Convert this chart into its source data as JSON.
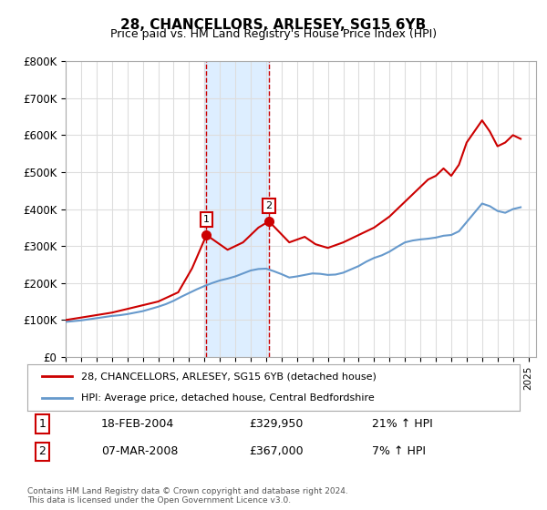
{
  "title": "28, CHANCELLORS, ARLESEY, SG15 6YB",
  "subtitle": "Price paid vs. HM Land Registry's House Price Index (HPI)",
  "ylabel_ticks": [
    "£0",
    "£100K",
    "£200K",
    "£300K",
    "£400K",
    "£500K",
    "£600K",
    "£700K",
    "£800K"
  ],
  "ytick_values": [
    0,
    100000,
    200000,
    300000,
    400000,
    500000,
    600000,
    700000,
    800000
  ],
  "ylim": [
    0,
    800000
  ],
  "xlim_start": 1995.0,
  "xlim_end": 2025.5,
  "marker1_x": 2004.13,
  "marker1_y": 329950,
  "marker2_x": 2008.18,
  "marker2_y": 367000,
  "shade1_x1": 2004.0,
  "shade1_x2": 2008.18,
  "legend_line1": "28, CHANCELLORS, ARLESEY, SG15 6YB (detached house)",
  "legend_line2": "HPI: Average price, detached house, Central Bedfordshire",
  "table_row1_num": "1",
  "table_row1_date": "18-FEB-2004",
  "table_row1_price": "£329,950",
  "table_row1_hpi": "21% ↑ HPI",
  "table_row2_num": "2",
  "table_row2_date": "07-MAR-2008",
  "table_row2_price": "£367,000",
  "table_row2_hpi": "7% ↑ HPI",
  "footer": "Contains HM Land Registry data © Crown copyright and database right 2024.\nThis data is licensed under the Open Government Licence v3.0.",
  "color_red": "#cc0000",
  "color_blue": "#6699cc",
  "color_shade": "#ddeeff",
  "color_dashed": "#cc0000",
  "background": "#ffffff",
  "grid_color": "#dddddd",
  "hpi_years": [
    1995,
    1995.5,
    1996,
    1996.5,
    1997,
    1997.5,
    1998,
    1998.5,
    1999,
    1999.5,
    2000,
    2000.5,
    2001,
    2001.5,
    2002,
    2002.5,
    2003,
    2003.5,
    2004,
    2004.5,
    2005,
    2005.5,
    2006,
    2006.5,
    2007,
    2007.5,
    2008,
    2008.5,
    2009,
    2009.5,
    2010,
    2010.5,
    2011,
    2011.5,
    2012,
    2012.5,
    2013,
    2013.5,
    2014,
    2014.5,
    2015,
    2015.5,
    2016,
    2016.5,
    2017,
    2017.5,
    2018,
    2018.5,
    2019,
    2019.5,
    2020,
    2020.5,
    2021,
    2021.5,
    2022,
    2022.5,
    2023,
    2023.5,
    2024,
    2024.5
  ],
  "hpi_values": [
    95000,
    97000,
    99000,
    102000,
    105000,
    108000,
    111000,
    113000,
    116000,
    120000,
    124000,
    130000,
    136000,
    143000,
    152000,
    163000,
    173000,
    183000,
    192000,
    200000,
    207000,
    212000,
    218000,
    226000,
    234000,
    238000,
    239000,
    232000,
    224000,
    215000,
    218000,
    222000,
    226000,
    225000,
    222000,
    223000,
    228000,
    237000,
    246000,
    258000,
    268000,
    275000,
    285000,
    298000,
    310000,
    315000,
    318000,
    320000,
    323000,
    328000,
    330000,
    340000,
    365000,
    390000,
    415000,
    408000,
    395000,
    390000,
    400000,
    405000
  ],
  "price_years": [
    1995,
    1996.5,
    1998,
    1999.5,
    2001,
    2002.3,
    2003.2,
    2004.13,
    2005.5,
    2006.5,
    2007.5,
    2008.18,
    2009.5,
    2010.5,
    2011.2,
    2012.0,
    2013.0,
    2014.0,
    2015.0,
    2016.0,
    2017.0,
    2017.5,
    2018.0,
    2018.5,
    2019.0,
    2019.5,
    2020.0,
    2020.5,
    2021.0,
    2021.5,
    2022.0,
    2022.5,
    2023.0,
    2023.5,
    2024.0,
    2024.5
  ],
  "price_values": [
    100000,
    110000,
    120000,
    135000,
    150000,
    175000,
    240000,
    329950,
    290000,
    310000,
    350000,
    367000,
    310000,
    325000,
    305000,
    295000,
    310000,
    330000,
    350000,
    380000,
    420000,
    440000,
    460000,
    480000,
    490000,
    510000,
    490000,
    520000,
    580000,
    610000,
    640000,
    610000,
    570000,
    580000,
    600000,
    590000
  ]
}
